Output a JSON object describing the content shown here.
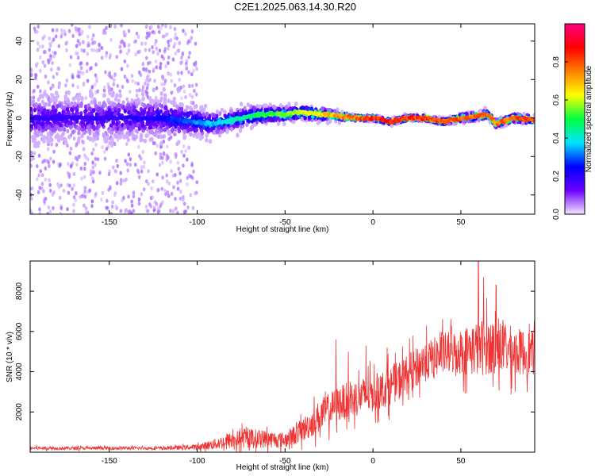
{
  "figure": {
    "title": "C2E1.2025.063.14.30.R20"
  },
  "chart_data": [
    {
      "type": "heatmap",
      "title": "C2E1.2025.063.14.30.R20",
      "xlabel": "Height of straight line (km)",
      "ylabel": "Frequency (Hz)",
      "xlim": [
        -195,
        92
      ],
      "ylim": [
        -50,
        49
      ],
      "x_ticks": [
        -150,
        -100,
        -50,
        0,
        50
      ],
      "y_ticks": [
        -40,
        -20,
        0,
        20,
        40
      ],
      "grid": false,
      "colorbar": {
        "label": "Normalized spectral amplitude",
        "range": [
          0,
          1
        ],
        "ticks": [
          0.0,
          0.2,
          0.4,
          0.6,
          0.8
        ],
        "colors": [
          "#f3e6ff",
          "#6a00ff",
          "#0000ff",
          "#00e5ff",
          "#00ff40",
          "#ffff00",
          "#ff8000",
          "#ff0000",
          "#ff0080"
        ]
      },
      "ridge": {
        "x": [
          -195,
          -150,
          -120,
          -100,
          -90,
          -80,
          -70,
          -60,
          -50,
          -40,
          -30,
          -20,
          -10,
          0,
          10,
          20,
          30,
          40,
          50,
          60,
          65,
          70,
          80,
          92
        ],
        "y": [
          0,
          0,
          0,
          -2,
          -3,
          -1,
          1,
          2,
          2,
          3,
          2,
          1,
          0,
          0,
          -2,
          0,
          0,
          -2,
          0,
          1,
          2,
          -3,
          0,
          -1
        ],
        "amplitude": [
          0.2,
          0.2,
          0.25,
          0.35,
          0.4,
          0.45,
          0.5,
          0.55,
          0.6,
          0.65,
          0.7,
          0.8,
          0.85,
          0.9,
          0.9,
          0.9,
          0.88,
          0.85,
          0.85,
          0.85,
          0.85,
          0.8,
          0.85,
          0.85
        ],
        "width_hz": [
          16,
          16,
          14,
          10,
          8,
          7,
          7,
          6,
          5,
          5,
          5,
          3,
          2,
          2,
          2,
          2,
          2,
          2,
          3,
          3,
          3,
          3,
          3,
          3
        ]
      },
      "noise_scatter_region_x": [
        -195,
        -100
      ]
    },
    {
      "type": "line",
      "xlabel": "Height of straight line (km)",
      "ylabel": "SNR (10 * v/v)",
      "xlim": [
        -195,
        92
      ],
      "ylim": [
        0,
        9500
      ],
      "x_ticks": [
        -150,
        -100,
        -50,
        0,
        50
      ],
      "y_ticks": [
        2000,
        4000,
        6000,
        8000
      ],
      "grid": false,
      "series": [
        {
          "color": "#ee3333",
          "envelope_x": [
            -195,
            -150,
            -120,
            -100,
            -90,
            -80,
            -70,
            -60,
            -50,
            -40,
            -30,
            -20,
            -10,
            0,
            10,
            20,
            30,
            40,
            50,
            60,
            70,
            80,
            92
          ],
          "envelope_mean": [
            200,
            200,
            200,
            250,
            400,
            600,
            700,
            650,
            600,
            1100,
            1800,
            2400,
            2700,
            2900,
            3300,
            3900,
            4500,
            4900,
            5000,
            5200,
            5300,
            5000,
            4900
          ],
          "envelope_amp": [
            150,
            150,
            150,
            250,
            500,
            800,
            900,
            800,
            700,
            1100,
            1500,
            1600,
            1700,
            1700,
            1700,
            1800,
            1800,
            1900,
            2100,
            2600,
            2500,
            2200,
            2000
          ],
          "peaks": [
            [
              -21,
              5600
            ],
            [
              -14,
              5000
            ],
            [
              -4,
              5300
            ],
            [
              8,
              5200
            ],
            [
              28,
              5100
            ],
            [
              60,
              9500
            ],
            [
              63,
              8700
            ],
            [
              70,
              8300
            ]
          ]
        }
      ]
    }
  ]
}
